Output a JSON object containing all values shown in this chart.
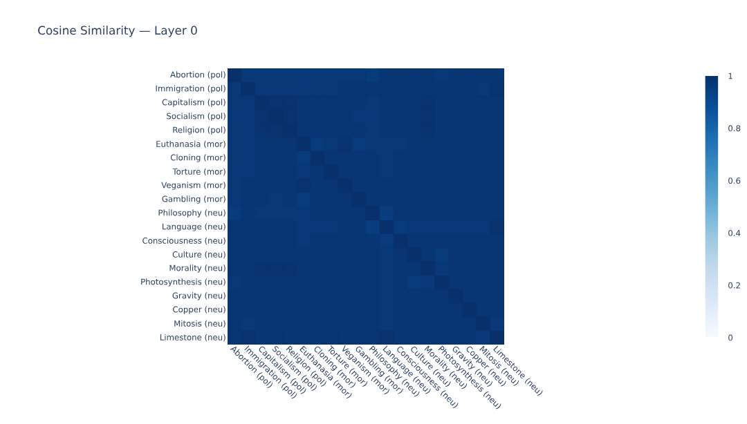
{
  "chart_data": {
    "type": "heatmap",
    "title": "Cosine Similarity — Layer 0",
    "categories": [
      "Abortion (pol)",
      "Immigration (pol)",
      "Capitalism (pol)",
      "Socialism (pol)",
      "Religion (pol)",
      "Euthanasia (mor)",
      "Cloning (mor)",
      "Torture (mor)",
      "Veganism (mor)",
      "Gambling (mor)",
      "Philosophy (neu)",
      "Language (neu)",
      "Consciousness (neu)",
      "Culture (neu)",
      "Morality (neu)",
      "Photosynthesis (neu)",
      "Gravity (neu)",
      "Copper (neu)",
      "Mitosis (neu)",
      "Limestone (neu)"
    ],
    "y_categories": [
      "Abortion (pol)",
      "Immigration (pol)",
      "Capitalism (pol)",
      "Socialism (pol)",
      "Religion (pol)",
      "Euthanasia (mor)",
      "Cloning (mor)",
      "Torture (mor)",
      "Veganism (mor)",
      "Gambling (mor)",
      "Philosophy (neu)",
      "Language (neu)",
      "Consciousness (neu)",
      "Culture (neu)",
      "Morality (neu)",
      "Photosynthesis (neu)",
      "Gravity (neu)",
      "Copper (neu)",
      "Mitosis (neu)",
      "Limestone (neu)"
    ],
    "cells": [
      [
        1,
        0.97,
        0.97,
        0.97,
        0.97,
        0.97,
        0.97,
        0.97,
        0.97,
        0.97,
        0.96,
        0.98,
        0.98,
        0.98,
        0.98,
        0.97,
        0.98,
        0.98,
        0.98,
        0.98
      ],
      [
        0.97,
        1,
        0.97,
        0.97,
        0.97,
        0.97,
        0.97,
        0.97,
        0.98,
        0.98,
        0.98,
        0.98,
        0.98,
        0.98,
        0.98,
        0.98,
        0.98,
        0.98,
        0.97,
        0.99
      ],
      [
        0.97,
        0.97,
        1,
        0.99,
        0.99,
        0.98,
        0.98,
        0.98,
        0.98,
        0.98,
        0.97,
        0.98,
        0.98,
        0.98,
        0.99,
        0.98,
        0.98,
        0.98,
        0.98,
        0.98
      ],
      [
        0.97,
        0.97,
        0.99,
        1,
        0.99,
        0.98,
        0.98,
        0.98,
        0.98,
        0.97,
        0.97,
        0.98,
        0.98,
        0.98,
        0.99,
        0.98,
        0.98,
        0.98,
        0.98,
        0.98
      ],
      [
        0.97,
        0.97,
        0.99,
        0.99,
        1,
        0.98,
        0.98,
        0.98,
        0.98,
        0.98,
        0.97,
        0.98,
        0.98,
        0.98,
        0.99,
        0.98,
        0.98,
        0.98,
        0.98,
        0.98
      ],
      [
        0.97,
        0.97,
        0.98,
        0.98,
        0.98,
        1,
        0.96,
        0.97,
        0.99,
        0.96,
        0.97,
        0.97,
        0.97,
        0.98,
        0.98,
        0.98,
        0.98,
        0.98,
        0.98,
        0.98
      ],
      [
        0.97,
        0.97,
        0.98,
        0.98,
        0.98,
        0.96,
        1,
        0.98,
        0.98,
        0.98,
        0.98,
        0.97,
        0.98,
        0.98,
        0.98,
        0.98,
        0.98,
        0.98,
        0.98,
        0.98
      ],
      [
        0.97,
        0.97,
        0.98,
        0.98,
        0.98,
        0.97,
        0.98,
        1,
        0.98,
        0.98,
        0.98,
        0.97,
        0.98,
        0.98,
        0.98,
        0.98,
        0.98,
        0.98,
        0.98,
        0.98
      ],
      [
        0.97,
        0.98,
        0.98,
        0.98,
        0.98,
        0.99,
        0.98,
        0.98,
        1,
        0.98,
        0.98,
        0.98,
        0.98,
        0.98,
        0.98,
        0.98,
        0.98,
        0.98,
        0.98,
        0.98
      ],
      [
        0.97,
        0.98,
        0.98,
        0.97,
        0.98,
        0.96,
        0.98,
        0.98,
        0.98,
        1,
        0.98,
        0.98,
        0.98,
        0.98,
        0.98,
        0.98,
        0.98,
        0.98,
        0.98,
        0.98
      ],
      [
        0.96,
        0.98,
        0.97,
        0.97,
        0.97,
        0.97,
        0.98,
        0.98,
        0.98,
        0.98,
        1,
        0.95,
        0.98,
        0.98,
        0.98,
        0.98,
        0.98,
        0.98,
        0.98,
        0.98
      ],
      [
        0.98,
        0.98,
        0.98,
        0.98,
        0.98,
        0.97,
        0.97,
        0.97,
        0.98,
        0.98,
        0.95,
        1,
        0.96,
        0.97,
        0.97,
        0.97,
        0.97,
        0.97,
        0.97,
        0.99
      ],
      [
        0.98,
        0.98,
        0.98,
        0.98,
        0.98,
        0.97,
        0.98,
        0.98,
        0.98,
        0.98,
        0.98,
        0.96,
        1,
        0.98,
        0.98,
        0.98,
        0.98,
        0.98,
        0.98,
        0.98
      ],
      [
        0.98,
        0.98,
        0.98,
        0.98,
        0.98,
        0.98,
        0.98,
        0.98,
        0.98,
        0.98,
        0.98,
        0.97,
        0.98,
        1,
        0.98,
        0.96,
        0.98,
        0.98,
        0.98,
        0.98
      ],
      [
        0.98,
        0.98,
        0.99,
        0.99,
        0.99,
        0.98,
        0.98,
        0.98,
        0.98,
        0.98,
        0.98,
        0.97,
        0.98,
        0.98,
        1,
        0.97,
        0.98,
        0.98,
        0.98,
        0.98
      ],
      [
        0.97,
        0.98,
        0.98,
        0.98,
        0.98,
        0.98,
        0.98,
        0.98,
        0.98,
        0.98,
        0.98,
        0.97,
        0.98,
        0.96,
        0.97,
        1,
        0.98,
        0.98,
        0.98,
        0.98
      ],
      [
        0.98,
        0.98,
        0.98,
        0.98,
        0.98,
        0.98,
        0.98,
        0.98,
        0.98,
        0.98,
        0.98,
        0.97,
        0.98,
        0.98,
        0.98,
        0.98,
        1,
        0.98,
        0.98,
        0.98
      ],
      [
        0.98,
        0.98,
        0.98,
        0.98,
        0.98,
        0.98,
        0.98,
        0.98,
        0.98,
        0.98,
        0.98,
        0.97,
        0.98,
        0.98,
        0.98,
        0.98,
        0.98,
        1,
        0.98,
        0.98
      ],
      [
        0.98,
        0.97,
        0.98,
        0.98,
        0.98,
        0.98,
        0.98,
        0.98,
        0.98,
        0.98,
        0.98,
        0.97,
        0.98,
        0.98,
        0.98,
        0.98,
        0.98,
        0.98,
        1,
        0.97
      ],
      [
        0.98,
        0.99,
        0.98,
        0.98,
        0.98,
        0.98,
        0.98,
        0.98,
        0.98,
        0.98,
        0.98,
        0.99,
        0.98,
        0.98,
        0.98,
        0.98,
        0.98,
        0.98,
        0.97,
        1
      ]
    ],
    "clim": [
      0,
      1
    ],
    "cticks": [
      0,
      0.2,
      0.4,
      0.6,
      0.8,
      1
    ]
  }
}
